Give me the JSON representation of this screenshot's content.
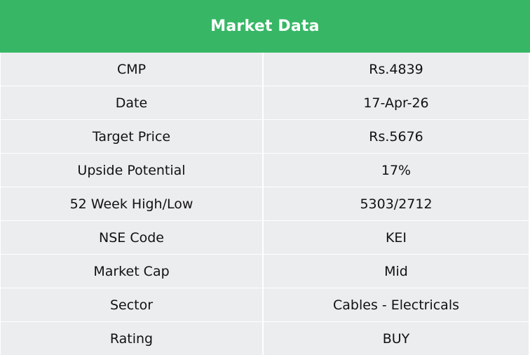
{
  "table": {
    "title": "Market Data",
    "rows": [
      {
        "label": "CMP",
        "value": "Rs.4839"
      },
      {
        "label": "Date",
        "value": "17-Apr-26"
      },
      {
        "label": "Target Price",
        "value": "Rs.5676"
      },
      {
        "label": "Upside Potential",
        "value": "17%"
      },
      {
        "label": "52 Week High/Low",
        "value": "5303/2712"
      },
      {
        "label": "NSE Code",
        "value": "KEI"
      },
      {
        "label": "Market Cap",
        "value": "Mid"
      },
      {
        "label": "Sector",
        "value": "Cables - Electricals"
      },
      {
        "label": "Rating",
        "value": "BUY"
      }
    ]
  },
  "colors": {
    "header_bg": "#37b766",
    "cell_bg": "#ebedef"
  }
}
